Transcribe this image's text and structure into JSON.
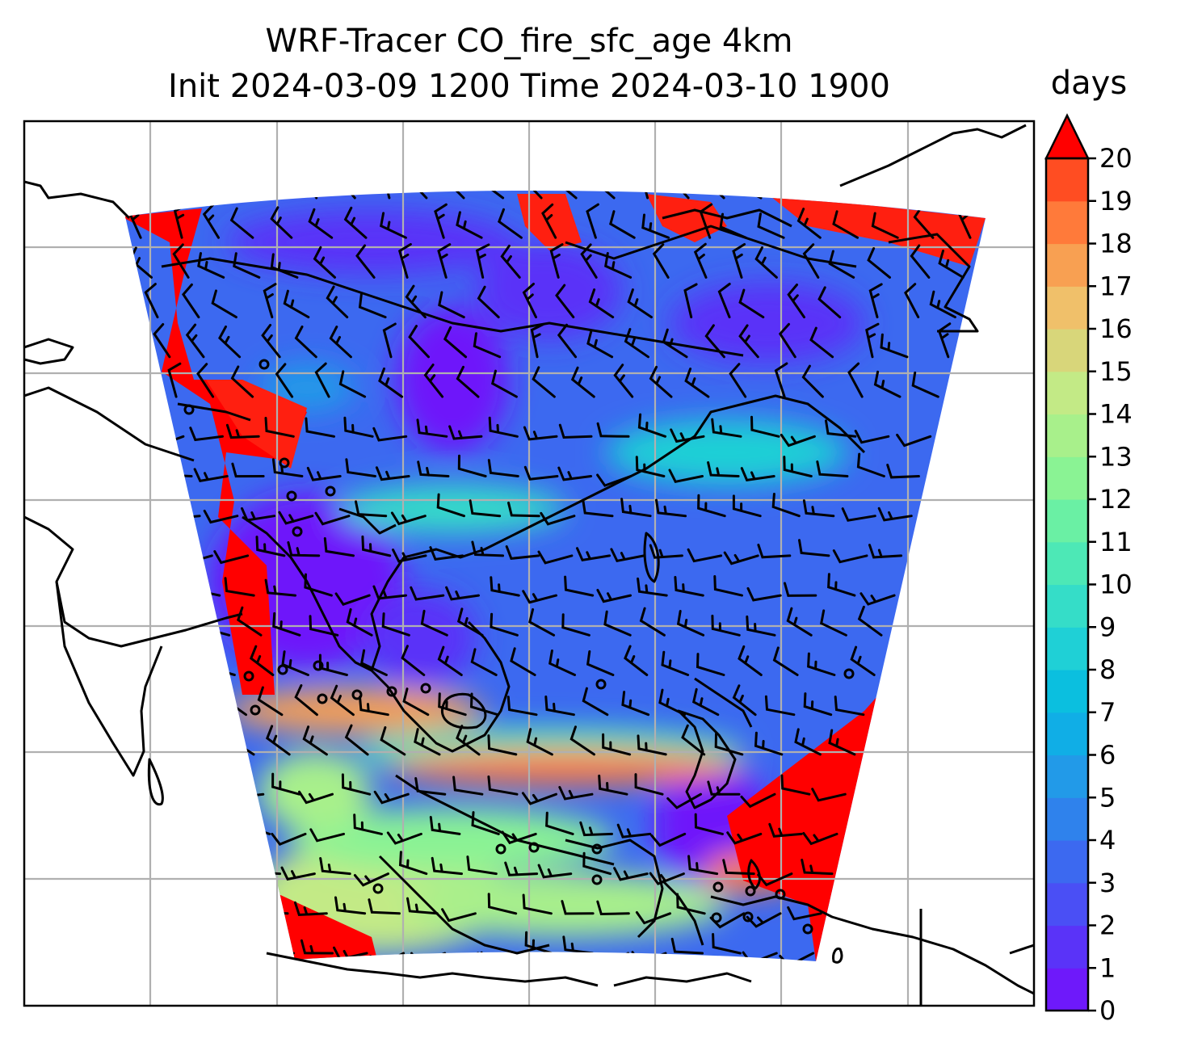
{
  "title_line1": "WRF-Tracer CO_fire_sfc_age 4km",
  "title_line2": "Init 2024-03-09 1200 Time 2024-03-10 1900",
  "colorbar": {
    "label": "days",
    "min": 0,
    "max": 20,
    "ticks": [
      "0",
      "1",
      "2",
      "3",
      "4",
      "5",
      "6",
      "7",
      "8",
      "9",
      "10",
      "11",
      "12",
      "13",
      "14",
      "15",
      "16",
      "17",
      "18",
      "19",
      "20"
    ],
    "extend": "max",
    "colors": [
      "#6e19fa",
      "#5a33f8",
      "#4a4ff5",
      "#3c69f0",
      "#2f82ec",
      "#229ae8",
      "#10aee6",
      "#0bbfdf",
      "#1fd0d6",
      "#35ddc8",
      "#4de8b6",
      "#6af0a4",
      "#8af394",
      "#a8f08b",
      "#c3ea86",
      "#d8d67a",
      "#f0c06a",
      "#f8a052",
      "#ff7a3a",
      "#ff4d22",
      "#ff1f10"
    ],
    "over_color": "#ff0000"
  },
  "map": {
    "land_outline_color": "#000000",
    "gridline_color": "#b0b0b0"
  }
}
